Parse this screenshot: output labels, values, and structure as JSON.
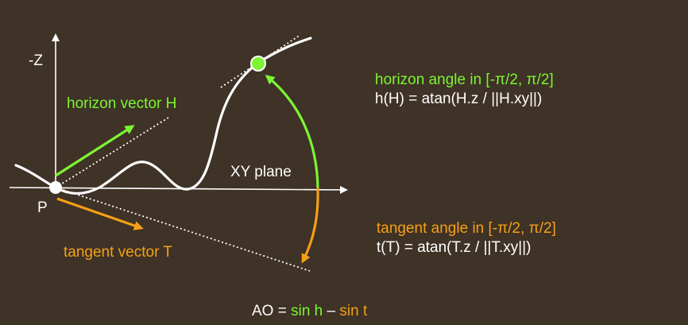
{
  "colors": {
    "background": "#3f3226",
    "white": "#ffffff",
    "green": "#7cf533",
    "orange": "#f5a018"
  },
  "labels": {
    "z_axis": "-Z",
    "point": "P",
    "xy_plane": "XY plane",
    "horizon_vector": "horizon vector H",
    "tangent_vector": "tangent vector T"
  },
  "equations": {
    "horizon_title": "horizon angle in [-π/2, π/2]",
    "horizon_formula": "h(H) = atan(H.z / ||H.xy||)",
    "tangent_title": "tangent angle in [-π/2, π/2]",
    "tangent_formula": "t(T) = atan(T.z / ||T.xy||)",
    "ao_prefix": "AO = ",
    "ao_sin_h": "sin h",
    "ao_minus": " – ",
    "ao_sin_t": "sin t"
  }
}
